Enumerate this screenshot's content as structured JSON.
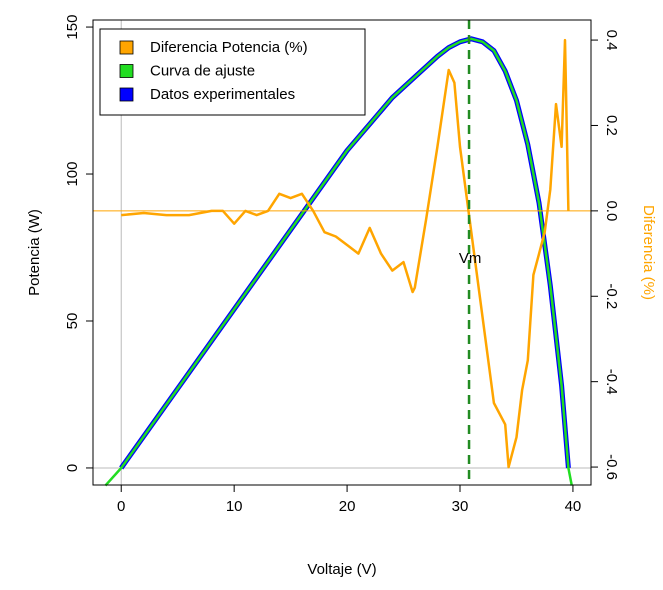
{
  "chart_data": {
    "type": "line",
    "x_label": "Voltaje (V)",
    "y_label": "Potencia (W)",
    "y2_label": "Diferencia (%)",
    "xlim": [
      -2.5,
      41.6
    ],
    "xticks": [
      0,
      10,
      20,
      30,
      40
    ],
    "ylim": [
      -5.8,
      152.4
    ],
    "yticks": [
      0,
      50,
      100,
      150
    ],
    "y2lim": [
      -0.642,
      0.447
    ],
    "y2ticks": [
      -0.6,
      -0.4,
      -0.2,
      {
        "value": 0,
        "label": "0.0"
      },
      0.2,
      0.4
    ],
    "y2_color": "#FFA500",
    "legend": "top-left",
    "series": [
      {
        "name": "Datos experimentales",
        "color": "#0000FF",
        "width": 5,
        "x": [
          0,
          5,
          10,
          15,
          20,
          22,
          24,
          26,
          28,
          29,
          30,
          31,
          32,
          33,
          34,
          35,
          36,
          37,
          38,
          39,
          39.6
        ],
        "values": [
          0,
          27,
          54,
          81,
          108,
          117,
          126,
          133,
          140,
          143,
          145,
          146,
          145,
          142,
          135,
          125,
          110,
          90,
          62,
          28,
          0
        ]
      },
      {
        "name": "Curva de ajuste",
        "color": "#22DD22",
        "width": 2.5,
        "x": [
          -1.4,
          0,
          5,
          10,
          15,
          20,
          22,
          24,
          26,
          28,
          29,
          30,
          31,
          32,
          33,
          34,
          35,
          36,
          37,
          38,
          39,
          39.6,
          39.9
        ],
        "values": [
          -6,
          0,
          27,
          54,
          81,
          108,
          117,
          126,
          133,
          140,
          143,
          145,
          146,
          145,
          142,
          135,
          125,
          110,
          90,
          62,
          28,
          0,
          -6
        ]
      },
      {
        "name": "Diferencia Potencia (%)",
        "color": "#FFA500",
        "width": 2.5,
        "axis": "y2",
        "x": [
          0,
          2,
          4,
          6,
          8,
          9,
          10,
          11,
          12,
          13,
          14,
          15,
          16,
          17,
          18,
          19,
          20,
          21,
          22,
          23,
          24,
          25,
          25.8,
          26,
          27,
          28,
          29,
          29.5,
          30,
          31,
          32,
          33,
          34,
          34.3,
          35,
          35.5,
          36,
          36.5,
          37,
          37.5,
          38,
          38.5,
          39,
          39.3,
          39.6
        ],
        "values": [
          -0.01,
          -0.005,
          -0.01,
          -0.01,
          0.0,
          0.0,
          -0.03,
          0.0,
          -0.01,
          0.0,
          0.04,
          0.03,
          0.04,
          0.0,
          -0.05,
          -0.06,
          -0.08,
          -0.1,
          -0.04,
          -0.1,
          -0.14,
          -0.12,
          -0.19,
          -0.18,
          -0.02,
          0.15,
          0.33,
          0.3,
          0.15,
          -0.05,
          -0.25,
          -0.45,
          -0.5,
          -0.6,
          -0.53,
          -0.42,
          -0.35,
          -0.15,
          -0.1,
          -0.05,
          0.05,
          0.25,
          0.15,
          0.4,
          0.0
        ]
      }
    ],
    "legend_order": [
      2,
      1,
      0
    ],
    "hline_y2": 0,
    "zero_lines": {
      "x": 0,
      "y": 0
    },
    "vline": {
      "x": 30.8,
      "color": "#228B22"
    },
    "annotation": {
      "text": "Vm",
      "x": 30.9,
      "y": 71
    }
  }
}
